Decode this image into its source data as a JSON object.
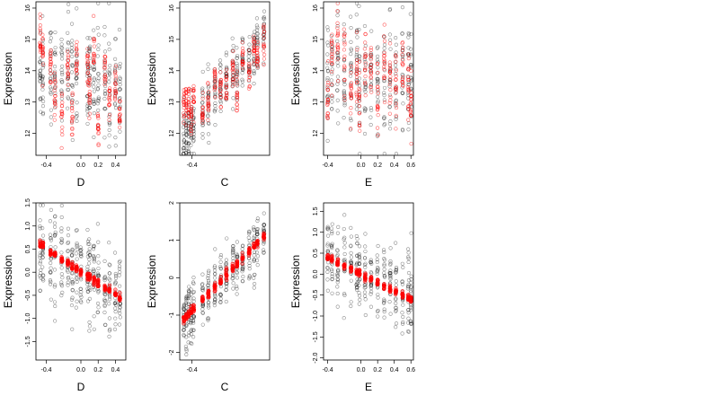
{
  "chart_data": [
    {
      "type": "scatter",
      "xlabel": "D",
      "ylabel": "Expression",
      "xlim": [
        -0.52,
        0.52
      ],
      "ylim": [
        11.3,
        16.2
      ],
      "xticks": [
        "-0.4",
        "0.0",
        "0.2",
        "0.4"
      ],
      "xtick_values": [
        -0.4,
        0.0,
        0.2,
        0.4
      ],
      "yticks": [
        "12",
        "13",
        "14",
        "15",
        "16"
      ],
      "ytick_values": [
        12,
        13,
        14,
        15,
        16
      ],
      "x_levels": [
        -0.47,
        -0.44,
        -0.35,
        -0.3,
        -0.22,
        -0.15,
        -0.1,
        -0.05,
        0.08,
        0.1,
        0.15,
        0.2,
        0.28,
        0.33,
        0.4,
        0.45
      ],
      "observed": {
        "mean": 13.8,
        "spread": 0.85,
        "trend": -0.5
      },
      "fitted": [
        {
          "x": -0.47,
          "y": 15.1
        },
        {
          "x": -0.44,
          "y": 14.7
        },
        {
          "x": -0.35,
          "y": 14.3
        },
        {
          "x": -0.3,
          "y": 13.2
        },
        {
          "x": -0.22,
          "y": 12.7
        },
        {
          "x": -0.15,
          "y": 14.0
        },
        {
          "x": -0.1,
          "y": 12.6
        },
        {
          "x": -0.05,
          "y": 14.3
        },
        {
          "x": 0.08,
          "y": 14.1
        },
        {
          "x": 0.1,
          "y": 13.2
        },
        {
          "x": 0.15,
          "y": 14.6
        },
        {
          "x": 0.2,
          "y": 12.2
        },
        {
          "x": 0.28,
          "y": 13.9
        },
        {
          "x": 0.33,
          "y": 13.1
        },
        {
          "x": 0.4,
          "y": 13.4
        },
        {
          "x": 0.45,
          "y": 12.5
        }
      ],
      "fitted_spread": 0.35,
      "colors": {
        "observed": "#000000",
        "fitted": "#ff0000"
      }
    },
    {
      "type": "scatter",
      "xlabel": "C",
      "ylabel": "Expression",
      "xlim": [
        -0.55,
        0.55
      ],
      "ylim": [
        11.3,
        16.2
      ],
      "xticks": [
        "-0.4"
      ],
      "xtick_values": [
        -0.4
      ],
      "yticks": [
        "12",
        "13",
        "14",
        "15",
        "16"
      ],
      "ytick_values": [
        12,
        13,
        14,
        15,
        16
      ],
      "x_levels": [
        -0.5,
        -0.47,
        -0.44,
        -0.41,
        -0.38,
        -0.27,
        -0.2,
        -0.12,
        -0.05,
        0.02,
        0.1,
        0.15,
        0.22,
        0.3,
        0.36,
        0.4,
        0.48
      ],
      "observed": {
        "mean": 13.5,
        "spread": 0.5,
        "trend": 3.2
      },
      "fitted": [
        {
          "x": -0.5,
          "y": 12.9
        },
        {
          "x": -0.47,
          "y": 13.0
        },
        {
          "x": -0.44,
          "y": 13.1
        },
        {
          "x": -0.41,
          "y": 12.4
        },
        {
          "x": -0.38,
          "y": 13.2
        },
        {
          "x": -0.27,
          "y": 12.6
        },
        {
          "x": -0.2,
          "y": 13.0
        },
        {
          "x": -0.12,
          "y": 13.6
        },
        {
          "x": -0.05,
          "y": 13.4
        },
        {
          "x": 0.02,
          "y": 13.5
        },
        {
          "x": 0.1,
          "y": 14.1
        },
        {
          "x": 0.15,
          "y": 13.4
        },
        {
          "x": 0.22,
          "y": 14.3
        },
        {
          "x": 0.3,
          "y": 14.0
        },
        {
          "x": 0.36,
          "y": 14.7
        },
        {
          "x": 0.4,
          "y": 14.4
        },
        {
          "x": 0.48,
          "y": 14.9
        }
      ],
      "fitted_spread": 0.3,
      "colors": {
        "observed": "#000000",
        "fitted": "#ff0000"
      }
    },
    {
      "type": "scatter",
      "xlabel": "E",
      "ylabel": "Expression",
      "xlim": [
        -0.45,
        0.63
      ],
      "ylim": [
        11.3,
        16.2
      ],
      "xticks": [
        "-0.4",
        "0.0",
        "0.2",
        "0.4",
        "0.6"
      ],
      "xtick_values": [
        -0.4,
        0.0,
        0.2,
        0.4,
        0.6
      ],
      "yticks": [
        "12",
        "13",
        "14",
        "15",
        "16"
      ],
      "ytick_values": [
        12,
        13,
        14,
        15,
        16
      ],
      "x_levels": [
        -0.4,
        -0.35,
        -0.28,
        -0.2,
        -0.12,
        -0.05,
        -0.02,
        0.05,
        0.12,
        0.2,
        0.28,
        0.35,
        0.42,
        0.5,
        0.57,
        0.6
      ],
      "observed": {
        "mean": 13.8,
        "spread": 0.9,
        "trend": -0.3
      },
      "fitted": [
        {
          "x": -0.4,
          "y": 13.2
        },
        {
          "x": -0.35,
          "y": 14.4
        },
        {
          "x": -0.28,
          "y": 14.9
        },
        {
          "x": -0.2,
          "y": 14.5
        },
        {
          "x": -0.12,
          "y": 13.4
        },
        {
          "x": -0.05,
          "y": 14.0
        },
        {
          "x": -0.02,
          "y": 12.8
        },
        {
          "x": 0.05,
          "y": 14.2
        },
        {
          "x": 0.12,
          "y": 14.1
        },
        {
          "x": 0.2,
          "y": 13.3
        },
        {
          "x": 0.28,
          "y": 14.4
        },
        {
          "x": 0.35,
          "y": 14.0
        },
        {
          "x": 0.42,
          "y": 13.6
        },
        {
          "x": 0.5,
          "y": 14.4
        },
        {
          "x": 0.57,
          "y": 13.6
        },
        {
          "x": 0.6,
          "y": 12.9
        }
      ],
      "fitted_spread": 0.55,
      "colors": {
        "observed": "#000000",
        "fitted": "#ff0000"
      }
    },
    {
      "type": "scatter",
      "xlabel": "D",
      "ylabel": "Expression",
      "xlim": [
        -0.52,
        0.52
      ],
      "ylim": [
        -1.9,
        1.5
      ],
      "xticks": [
        "-0.4",
        "0.0",
        "0.2",
        "0.4"
      ],
      "xtick_values": [
        -0.4,
        0.0,
        0.2,
        0.4
      ],
      "yticks": [
        "-1.5",
        "-1.0",
        "-0.5",
        "0.0",
        "0.5",
        "1.0",
        "1.5"
      ],
      "ytick_values": [
        -1.5,
        -1.0,
        -0.5,
        0.0,
        0.5,
        1.0,
        1.5
      ],
      "x_levels": [
        -0.47,
        -0.44,
        -0.35,
        -0.3,
        -0.22,
        -0.15,
        -0.1,
        -0.05,
        0.0,
        0.08,
        0.1,
        0.15,
        0.2,
        0.28,
        0.33,
        0.4,
        0.45
      ],
      "observed": {
        "mean": 0.0,
        "spread": 0.45,
        "trend": -1.2
      },
      "fitted_line": {
        "x0": -0.47,
        "y0": 0.6,
        "x1": 0.45,
        "y1": -0.55
      },
      "fitted_spread": 0.04,
      "colors": {
        "observed": "#000000",
        "fitted": "#ff0000"
      }
    },
    {
      "type": "scatter",
      "xlabel": "C",
      "ylabel": "Expression",
      "xlim": [
        -0.55,
        0.55
      ],
      "ylim": [
        -2.2,
        2.0
      ],
      "xticks": [
        "-0.4"
      ],
      "xtick_values": [
        -0.4
      ],
      "yticks": [
        "-2",
        "-1",
        "0",
        "1",
        "2"
      ],
      "ytick_values": [
        -2,
        -1,
        0,
        1,
        2
      ],
      "x_levels": [
        -0.5,
        -0.47,
        -0.44,
        -0.41,
        -0.38,
        -0.27,
        -0.2,
        -0.12,
        -0.05,
        0.02,
        0.1,
        0.15,
        0.22,
        0.3,
        0.36,
        0.4,
        0.48
      ],
      "observed": {
        "mean": 0.0,
        "spread": 0.4,
        "trend": 2.2
      },
      "fitted_line": {
        "x0": -0.5,
        "y0": -1.1,
        "x1": 0.48,
        "y1": 1.1
      },
      "fitted_spread": 0.05,
      "colors": {
        "observed": "#000000",
        "fitted": "#ff0000"
      }
    },
    {
      "type": "scatter",
      "xlabel": "E",
      "ylabel": "Expression",
      "xlim": [
        -0.45,
        0.63
      ],
      "ylim": [
        -2.05,
        1.7
      ],
      "xticks": [
        "-0.4",
        "0.0",
        "0.2",
        "0.4",
        "0.6"
      ],
      "xtick_values": [
        -0.4,
        0.0,
        0.2,
        0.4,
        0.6
      ],
      "yticks": [
        "-2.0",
        "-1.5",
        "-1.0",
        "-0.5",
        "0.0",
        "0.5",
        "1.0",
        "1.5"
      ],
      "ytick_values": [
        -2.0,
        -1.5,
        -1.0,
        -0.5,
        0.0,
        0.5,
        1.0,
        1.5
      ],
      "x_levels": [
        -0.4,
        -0.35,
        -0.28,
        -0.2,
        -0.12,
        -0.05,
        -0.02,
        0.05,
        0.12,
        0.2,
        0.28,
        0.35,
        0.42,
        0.5,
        0.57,
        0.6
      ],
      "observed": {
        "mean": 0.0,
        "spread": 0.45,
        "trend": -1.0
      },
      "fitted_line": {
        "x0": -0.4,
        "y0": 0.4,
        "x1": 0.6,
        "y1": -0.6
      },
      "fitted_spread": 0.04,
      "colors": {
        "observed": "#000000",
        "fitted": "#ff0000"
      }
    }
  ]
}
